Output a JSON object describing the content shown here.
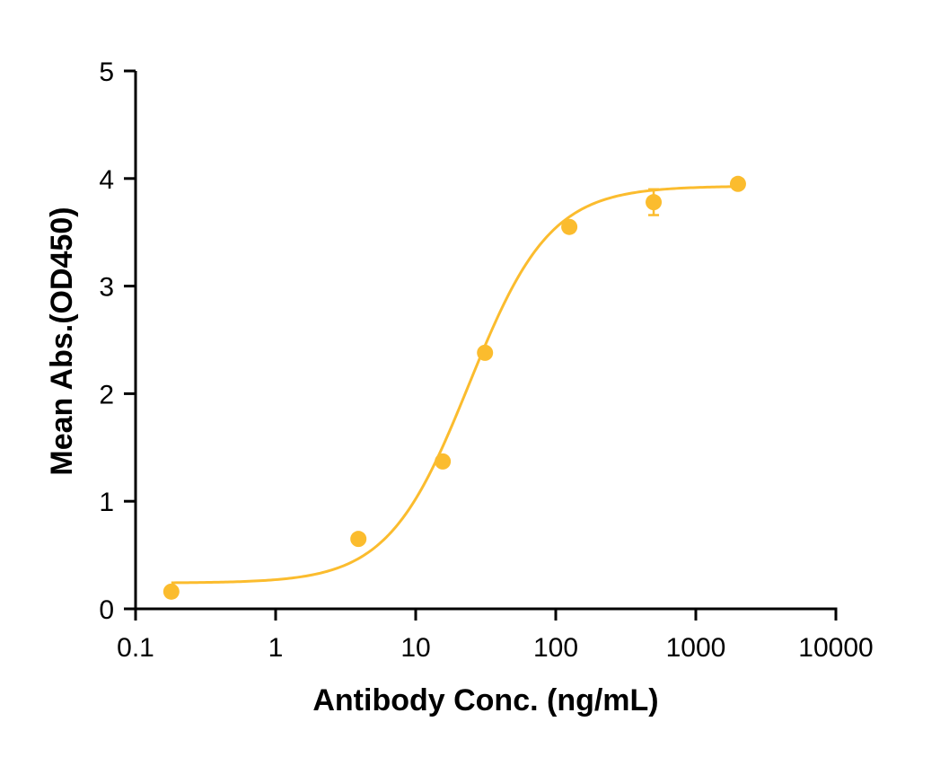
{
  "chart_data": {
    "type": "scatter",
    "title": "",
    "xlabel": "Antibody Conc. (ng/mL)",
    "ylabel": "Mean Abs.(OD450)",
    "xscale": "log",
    "xlim": [
      0.1,
      10000
    ],
    "ylim": [
      0,
      5
    ],
    "xticks": [
      0.1,
      1,
      10,
      100,
      1000,
      10000
    ],
    "xtick_labels": [
      "0.1",
      "1",
      "10",
      "100",
      "1000",
      "10000"
    ],
    "yticks": [
      0,
      1,
      2,
      3,
      4,
      5
    ],
    "ytick_labels": [
      "0",
      "1",
      "2",
      "3",
      "4",
      "5"
    ],
    "grid": false,
    "legend": "none",
    "color": "#FBBC2E",
    "series": [
      {
        "x": [
          0.18,
          3.9,
          15.6,
          31.25,
          125,
          500,
          2000
        ],
        "y": [
          0.16,
          0.65,
          1.37,
          2.38,
          3.55,
          3.78,
          3.95
        ],
        "error": [
          0.02,
          0.03,
          0.03,
          0.04,
          0.03,
          0.12,
          0.03
        ]
      }
    ],
    "fit": {
      "model": "4PL",
      "bottom": 0.24,
      "top": 3.93,
      "ec50": 24,
      "hill": 1.5
    }
  }
}
